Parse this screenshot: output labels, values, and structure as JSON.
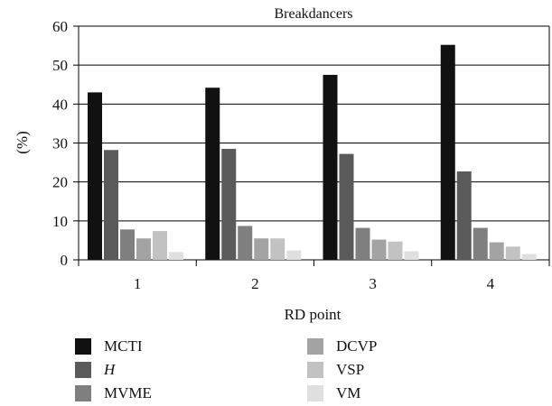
{
  "chart_data": {
    "type": "bar",
    "title": "Breakdancers",
    "xlabel": "RD point",
    "ylabel": "(%)",
    "categories": [
      "1",
      "2",
      "3",
      "4"
    ],
    "ylim": [
      0,
      60
    ],
    "yticks": [
      0,
      10,
      20,
      30,
      40,
      50,
      60
    ],
    "grid": "horizontal",
    "legend_position": "bottom",
    "series": [
      {
        "name": "MCTI",
        "color": "#111111",
        "values": [
          43,
          44.2,
          47.5,
          55.2
        ]
      },
      {
        "name": "H",
        "color": "#5a5a5a",
        "values": [
          28.2,
          28.5,
          27.2,
          22.7
        ]
      },
      {
        "name": "MVME",
        "color": "#7f7f7f",
        "values": [
          7.8,
          8.7,
          8.2,
          8.2
        ]
      },
      {
        "name": "DCVP",
        "color": "#a3a3a3",
        "values": [
          5.5,
          5.5,
          5.2,
          4.5
        ]
      },
      {
        "name": "VSP",
        "color": "#c2c2c2",
        "values": [
          7.4,
          5.5,
          4.7,
          3.4
        ]
      },
      {
        "name": "VM",
        "color": "#dfdfdf",
        "values": [
          2,
          2.4,
          2.2,
          1.5
        ]
      }
    ]
  }
}
